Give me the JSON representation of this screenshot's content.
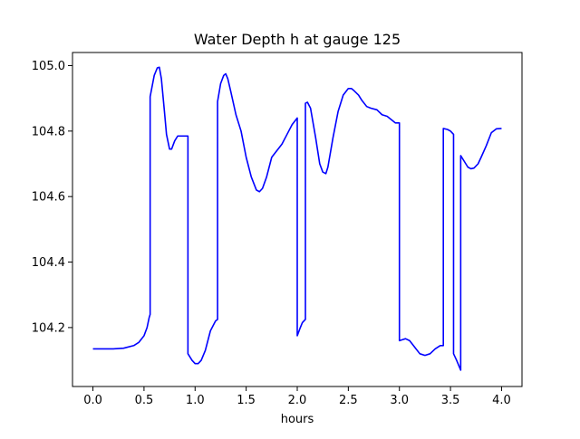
{
  "chart_data": {
    "type": "line",
    "title": "Water Depth h at gauge 125",
    "xlabel": "hours",
    "ylabel": "",
    "xlim": [
      -0.2,
      4.2
    ],
    "ylim": [
      104.02,
      105.04
    ],
    "xticks": [
      0.0,
      0.5,
      1.0,
      1.5,
      2.0,
      2.5,
      3.0,
      3.5,
      4.0
    ],
    "xtick_labels": [
      "0.0",
      "0.5",
      "1.0",
      "1.5",
      "2.0",
      "2.5",
      "3.0",
      "3.5",
      "4.0"
    ],
    "yticks": [
      104.2,
      104.4,
      104.6,
      104.8,
      105.0
    ],
    "ytick_labels": [
      "104.2",
      "104.4",
      "104.6",
      "104.8",
      "105.0"
    ],
    "grid": false,
    "legend": "none",
    "series": [
      {
        "color": "#0000ff",
        "x": [
          0.0,
          0.1,
          0.2,
          0.3,
          0.4,
          0.45,
          0.5,
          0.53,
          0.55,
          0.56,
          0.56,
          0.6,
          0.63,
          0.65,
          0.67,
          0.7,
          0.72,
          0.75,
          0.77,
          0.8,
          0.83,
          0.86,
          0.9,
          0.93,
          0.93,
          0.97,
          1.0,
          1.03,
          1.06,
          1.1,
          1.15,
          1.2,
          1.22,
          1.22,
          1.25,
          1.28,
          1.3,
          1.32,
          1.35,
          1.4,
          1.45,
          1.5,
          1.55,
          1.6,
          1.63,
          1.66,
          1.7,
          1.75,
          1.8,
          1.85,
          1.9,
          1.95,
          2.0,
          2.0,
          2.03,
          2.05,
          2.08,
          2.08,
          2.1,
          2.13,
          2.18,
          2.22,
          2.25,
          2.28,
          2.3,
          2.35,
          2.4,
          2.45,
          2.5,
          2.53,
          2.55,
          2.6,
          2.63,
          2.68,
          2.72,
          2.78,
          2.83,
          2.88,
          2.92,
          2.96,
          3.0,
          3.0,
          3.03,
          3.06,
          3.1,
          3.15,
          3.2,
          3.25,
          3.3,
          3.35,
          3.4,
          3.43,
          3.43,
          3.47,
          3.5,
          3.53,
          3.53,
          3.56,
          3.6,
          3.6,
          3.63,
          3.67,
          3.7,
          3.73,
          3.77,
          3.8,
          3.85,
          3.9,
          3.95,
          4.0
        ],
        "values": [
          104.135,
          104.135,
          104.135,
          104.137,
          104.145,
          104.155,
          104.175,
          104.2,
          104.23,
          104.24,
          104.905,
          104.97,
          104.993,
          104.995,
          104.96,
          104.86,
          104.79,
          104.745,
          104.745,
          104.77,
          104.785,
          104.785,
          104.785,
          104.785,
          104.12,
          104.1,
          104.09,
          104.09,
          104.1,
          104.13,
          104.19,
          104.22,
          104.225,
          104.89,
          104.945,
          104.97,
          104.975,
          104.96,
          104.92,
          104.85,
          104.8,
          104.72,
          104.66,
          104.62,
          104.615,
          104.625,
          104.66,
          104.72,
          104.74,
          104.76,
          104.79,
          104.82,
          104.84,
          104.175,
          104.2,
          104.215,
          104.225,
          104.885,
          104.888,
          104.87,
          104.78,
          104.7,
          104.675,
          104.67,
          104.69,
          104.78,
          104.86,
          104.91,
          104.93,
          104.93,
          104.925,
          104.91,
          104.895,
          104.875,
          104.87,
          104.865,
          104.85,
          104.845,
          104.835,
          104.825,
          104.825,
          104.16,
          104.163,
          104.166,
          104.16,
          104.14,
          104.12,
          104.115,
          104.12,
          104.135,
          104.145,
          104.145,
          104.808,
          104.805,
          104.8,
          104.79,
          104.12,
          104.1,
          104.07,
          104.725,
          104.71,
          104.69,
          104.685,
          104.687,
          104.7,
          104.72,
          104.755,
          104.795,
          104.807,
          104.808
        ]
      }
    ]
  }
}
